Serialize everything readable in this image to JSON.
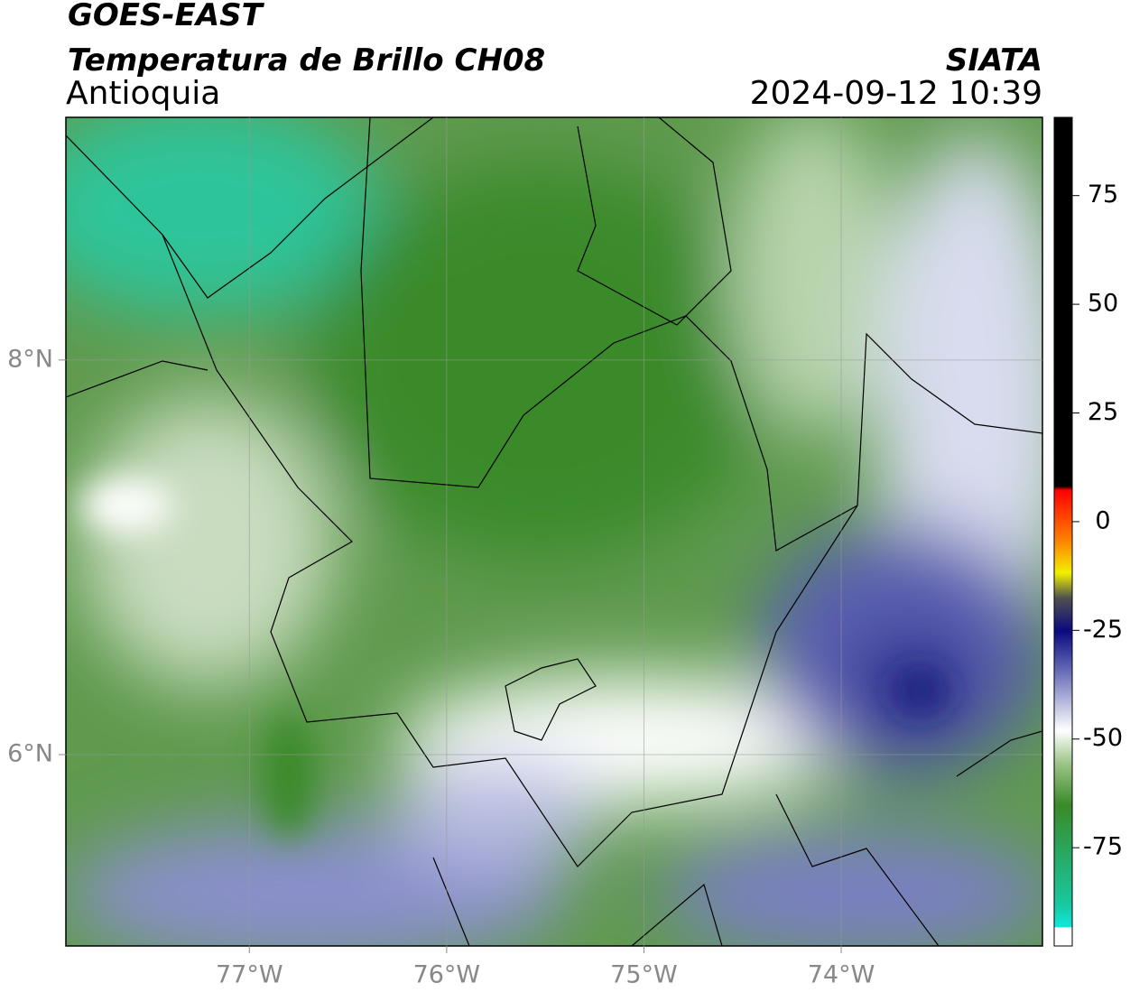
{
  "header": {
    "title": "GOES-EAST",
    "subtitle": "Temperatura de Brillo CH08",
    "region": "Antioquia",
    "source": "SIATA",
    "datetime": "2024-09-12 10:39"
  },
  "map": {
    "xlim": [
      -77.93,
      -72.98
    ],
    "ylim": [
      5.03,
      9.23
    ],
    "xticks": [
      {
        "value": -77,
        "label": "77°W"
      },
      {
        "value": -76,
        "label": "76°W"
      },
      {
        "value": -75,
        "label": "75°W"
      },
      {
        "value": -74,
        "label": "74°W"
      }
    ],
    "yticks": [
      {
        "value": 6,
        "label": "6°N"
      },
      {
        "value": 8,
        "label": "8°N"
      }
    ],
    "grid": true
  },
  "colorbar": {
    "lim": [
      -97.6,
      93
    ],
    "ticks": [
      75,
      50,
      25,
      0,
      -25,
      -50,
      -75
    ]
  }
}
